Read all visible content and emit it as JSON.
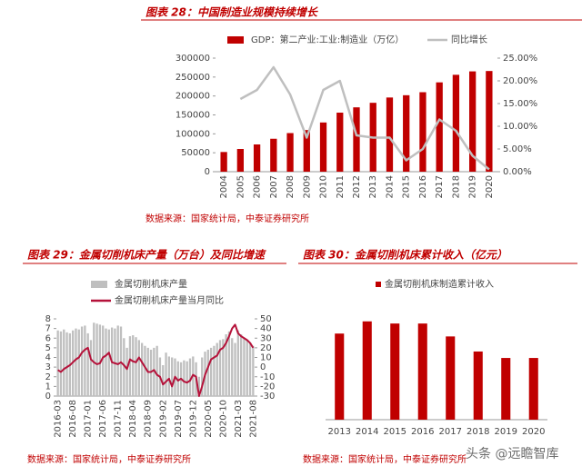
{
  "chart_data": [
    {
      "type": "bar_line",
      "title": "图表 28：中国制造业规模持续增长",
      "categories": [
        "2004",
        "2005",
        "2006",
        "2007",
        "2008",
        "2009",
        "2010",
        "2011",
        "2012",
        "2013",
        "2014",
        "2015",
        "2016",
        "2017",
        "2018",
        "2019",
        "2020"
      ],
      "series": [
        {
          "name": "GDP：第二产业:工业:制造业（万亿）",
          "color": "#c00000",
          "values": [
            52000,
            60000,
            72000,
            87000,
            102000,
            110000,
            130000,
            156000,
            170000,
            182000,
            196000,
            202000,
            210000,
            236000,
            256000,
            265000,
            266000
          ]
        },
        {
          "name": "同比增长",
          "color": "#bfbfbf",
          "axis": "y2",
          "values": [
            null,
            16,
            18,
            23,
            17,
            7.5,
            18,
            20,
            8,
            7.5,
            7.5,
            2.5,
            5,
            11.5,
            9,
            3.5,
            0.5
          ]
        }
      ],
      "ylim": [
        0,
        300000
      ],
      "yticks": [
        0,
        50000,
        100000,
        150000,
        200000,
        250000,
        300000
      ],
      "y2lim": [
        0,
        25
      ],
      "y2ticks": [
        {
          "value": 0,
          "label": "0.00%"
        },
        {
          "value": 5,
          "label": "5.00%"
        },
        {
          "value": 10,
          "label": "10.00%"
        },
        {
          "value": 15,
          "label": "15.00%"
        },
        {
          "value": 20,
          "label": "20.00%"
        },
        {
          "value": 25,
          "label": "25.00%"
        }
      ],
      "source": "数据来源：国家统计局，中泰证券研究所"
    },
    {
      "type": "bar_line",
      "title": "图表 29：金属切削机床产量（万台）及同比增速",
      "categories": [
        "2016-03",
        null,
        null,
        null,
        null,
        "2016-08",
        null,
        null,
        null,
        null,
        "2017-01",
        null,
        null,
        null,
        null,
        "2017-06",
        null,
        null,
        null,
        null,
        "2017-11",
        null,
        null,
        null,
        null,
        "2018-04",
        null,
        null,
        null,
        null,
        "2018-09",
        null,
        null,
        null,
        null,
        "2019-02",
        null,
        null,
        null,
        null,
        "2019-07",
        null,
        null,
        null,
        null,
        "2019-12",
        null,
        null,
        null,
        null,
        "2020-05",
        null,
        null,
        null,
        null,
        "2020-10",
        null,
        null,
        null,
        null,
        "2021-03",
        null,
        null,
        null,
        null,
        "2021-08"
      ],
      "series": [
        {
          "name": "金属切削机床产量",
          "color": "#bfbfbf",
          "values": [
            6.8,
            6.7,
            6.9,
            6.6,
            6.5,
            6.8,
            7.0,
            6.9,
            7.2,
            7.3,
            6.5,
            5.8,
            7.6,
            7.5,
            7.4,
            7.3,
            7.0,
            6.9,
            7.1,
            7.0,
            7.3,
            7.2,
            6.0,
            5.0,
            6.2,
            6.3,
            6.1,
            5.8,
            5.5,
            5.2,
            5.0,
            4.8,
            5.0,
            5.2,
            4.0,
            3.2,
            4.5,
            4.1,
            4.0,
            3.9,
            3.6,
            3.5,
            3.7,
            3.6,
            3.9,
            4.1,
            3.5,
            2.0,
            4.0,
            4.6,
            4.8,
            5.0,
            5.2,
            5.5,
            5.8,
            5.9,
            6.4,
            6.7,
            6.0,
            5.5,
            6.8,
            6.4,
            6.0,
            5.8,
            5.5,
            5.2
          ]
        },
        {
          "name": "金属切削机床产量当月同比",
          "color": "#b5123a",
          "axis": "y2",
          "values": [
            -3,
            -5,
            -2,
            0,
            2,
            5,
            8,
            10,
            15,
            18,
            20,
            8,
            5,
            3,
            4,
            10,
            12,
            15,
            5,
            4,
            3,
            5,
            2,
            -2,
            8,
            6,
            5,
            10,
            5,
            0,
            -5,
            -5,
            -3,
            -8,
            -10,
            -18,
            -15,
            -12,
            -20,
            -10,
            -14,
            -12,
            -15,
            -16,
            -14,
            -8,
            -10,
            -30,
            -20,
            -8,
            0,
            8,
            10,
            12,
            18,
            20,
            25,
            32,
            40,
            44,
            35,
            32,
            30,
            28,
            25,
            20
          ]
        }
      ],
      "ylim": [
        0,
        8
      ],
      "yticks": [
        0,
        1,
        2,
        3,
        4,
        5,
        6,
        7,
        8
      ],
      "y2lim": [
        -30,
        50
      ],
      "y2ticks": [
        -30,
        -20,
        -10,
        0,
        10,
        20,
        30,
        40,
        50
      ],
      "source": "数据来源：国家统计局，中泰证券研究所"
    },
    {
      "type": "bar",
      "title": "图表 30：金属切削机床累计收入（亿元）",
      "categories": [
        "2013",
        "2014",
        "2015",
        "2016",
        "2017",
        "2018",
        "2019",
        "2020"
      ],
      "series": [
        {
          "name": "金属切削机床制造累计收入",
          "color": "#c00000",
          "values": [
            1200,
            1370,
            1340,
            1340,
            1160,
            950,
            860,
            860
          ]
        }
      ],
      "source": "数据来源：国家统计局，中泰证券研究所"
    }
  ],
  "watermark": "头条 @远瞻智库"
}
